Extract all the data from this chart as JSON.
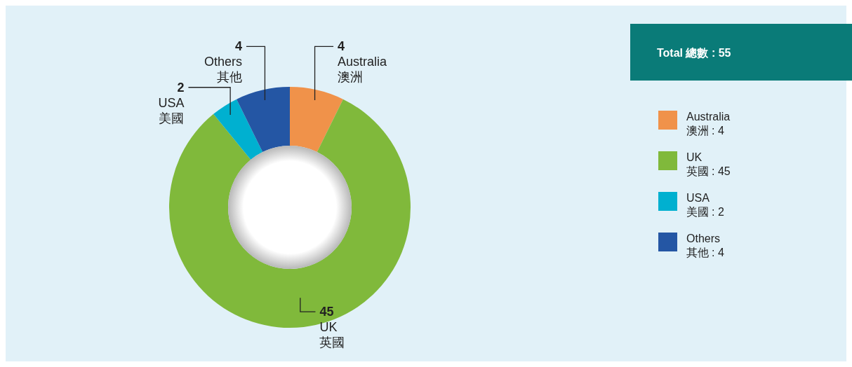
{
  "chart_data": {
    "type": "donut",
    "title": "Total 總數 : 55",
    "categories": [
      "Australia\n澳洲",
      "UK\n英國",
      "USA\n美國",
      "Others\n其他"
    ],
    "values": [
      4,
      45,
      2,
      4
    ],
    "colors": [
      "#f0924a",
      "#80b93b",
      "#00b0d0",
      "#2456a4"
    ],
    "data_labels": true,
    "legend": "right",
    "annotations": [
      ": 4",
      ": 45",
      ": 2",
      ": 4"
    ]
  }
}
